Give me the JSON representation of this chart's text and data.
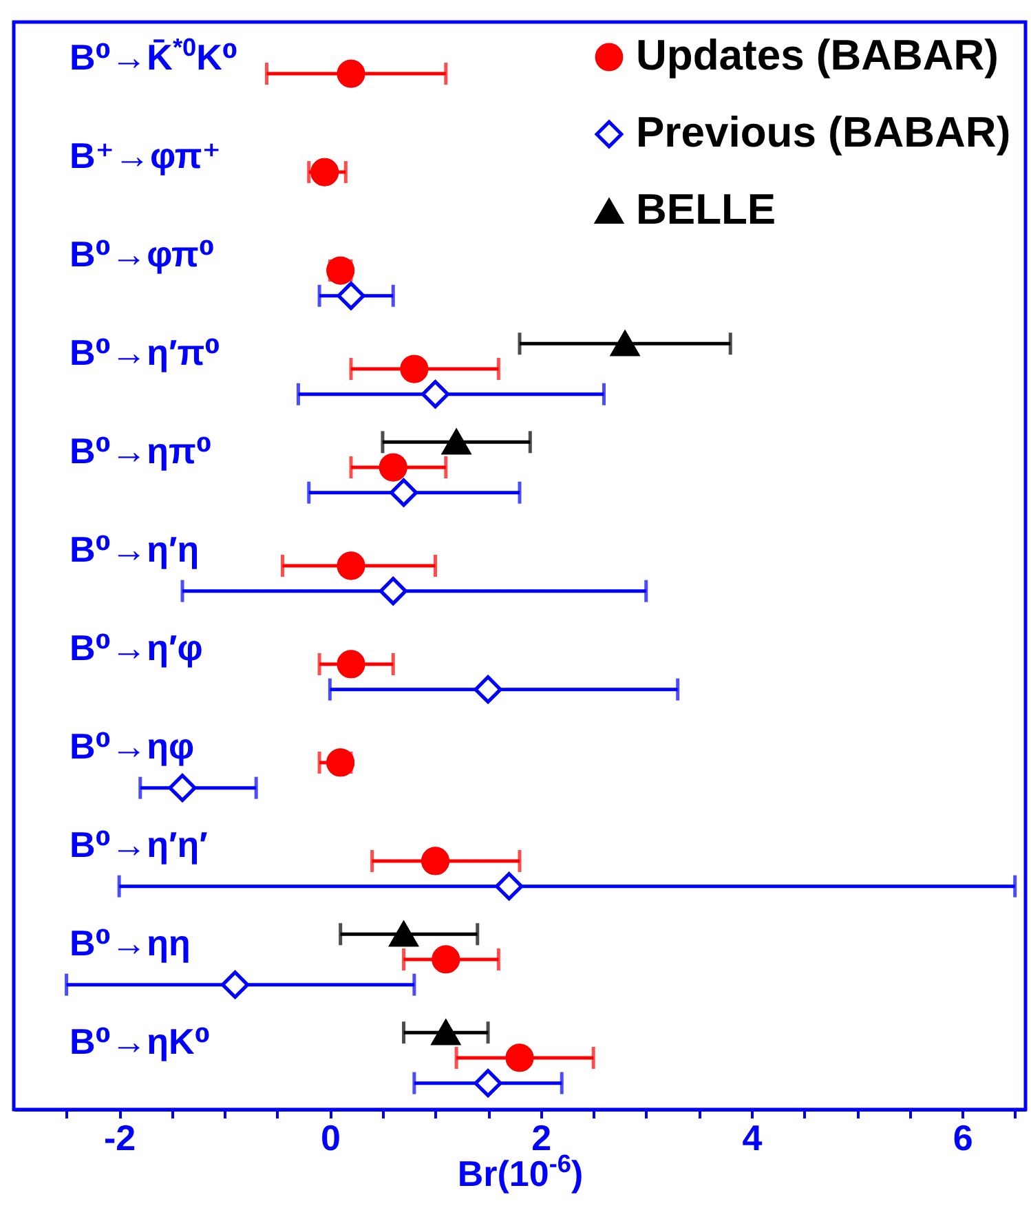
{
  "chart_data": {
    "type": "scatter",
    "orientation": "horizontal",
    "xlabel": "Br(10$^{-6}$)",
    "legend": "top right",
    "categories": [
      "B⁰→K̄$^{*0}$K⁰",
      "B⁺→φπ⁺",
      "B⁰→φπ⁰",
      "B⁰→η′π⁰",
      "B⁰→ηπ⁰",
      "B⁰→η′η",
      "B⁰→η′φ",
      "B⁰→ηφ",
      "B⁰→η′η′",
      "B⁰→ηη",
      "B⁰→ηK⁰"
    ],
    "xlim": [
      -3,
      6.6
    ],
    "xticks": [
      {
        "value": -2.5,
        "label": null
      },
      -2,
      {
        "value": -1.5,
        "label": null
      },
      {
        "value": -1,
        "label": null
      },
      {
        "value": -0.5,
        "label": null
      },
      0,
      {
        "value": 0.5,
        "label": null
      },
      {
        "value": 1,
        "label": null
      },
      {
        "value": 1.5,
        "label": null
      },
      2,
      {
        "value": 2.5,
        "label": null
      },
      {
        "value": 3,
        "label": null
      },
      {
        "value": 3.5,
        "label": null
      },
      4,
      {
        "value": 4.5,
        "label": null
      },
      {
        "value": 5,
        "label": null
      },
      {
        "value": 5.5,
        "label": null
      },
      6,
      {
        "value": 6.5,
        "label": null
      }
    ],
    "series": [
      {
        "name": "Updates (BABAR)",
        "color": "#ff0000",
        "marker": "circle",
        "values": [
          0.2,
          -0.05,
          0.1,
          0.8,
          0.6,
          0.2,
          0.2,
          0.1,
          1.0,
          1.1,
          1.8
        ],
        "errors": [
          [
            -0.6,
            1.1
          ],
          [
            -0.2,
            0.15
          ],
          [
            0.0,
            0.2
          ],
          [
            0.2,
            1.6
          ],
          [
            0.2,
            1.1
          ],
          [
            -0.45,
            1.0
          ],
          [
            -0.1,
            0.6
          ],
          [
            -0.1,
            0.2
          ],
          [
            0.4,
            1.8
          ],
          [
            0.7,
            1.6
          ],
          [
            1.2,
            2.5
          ]
        ]
      },
      {
        "name": "Previous (BABAR)",
        "color": "#0000ff",
        "marker": "diamond",
        "values": [
          null,
          null,
          0.2,
          1.0,
          0.7,
          0.6,
          1.5,
          -1.4,
          1.7,
          -0.9,
          1.5
        ],
        "errors": [
          null,
          null,
          [
            -0.1,
            0.6
          ],
          [
            -0.3,
            2.6
          ],
          [
            -0.2,
            1.8
          ],
          [
            -1.4,
            3.0
          ],
          [
            0.0,
            3.3
          ],
          [
            -1.8,
            -0.7
          ],
          [
            -2.0,
            6.5
          ],
          [
            -2.5,
            0.8
          ],
          [
            0.8,
            2.2
          ]
        ]
      },
      {
        "name": "BELLE",
        "color": "#000000",
        "marker": "triangle",
        "values": [
          null,
          null,
          null,
          2.8,
          1.2,
          null,
          null,
          null,
          null,
          0.7,
          1.1
        ],
        "errors": [
          null,
          null,
          null,
          [
            1.8,
            3.8
          ],
          [
            0.5,
            1.9
          ],
          null,
          null,
          null,
          null,
          [
            0.1,
            1.4
          ],
          [
            0.7,
            1.5
          ]
        ]
      }
    ]
  }
}
